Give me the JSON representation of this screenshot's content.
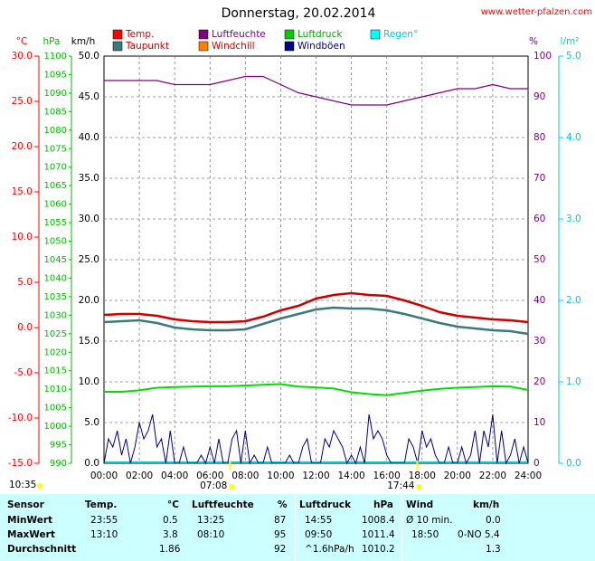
{
  "title": "Donnerstag, 20.02.2014",
  "site": "www.wetter-pfalzen.com",
  "colors": {
    "temp": "#cc0000",
    "dew": "#3a7a7a",
    "humidity": "#800080",
    "pressure": "#00dd00",
    "wind": "#000080",
    "rain": "#00cccc",
    "windchill": "#ff8000",
    "axis_celsius": "#ff0000",
    "axis_hpa": "#00bb00",
    "axis_wind": "#000000",
    "axis_pct": "#800080",
    "axis_rain": "#00cccc"
  },
  "legend": [
    {
      "label": "Temp.",
      "color": "#ff0000"
    },
    {
      "label": "Luftfeuchte",
      "color": "#800080"
    },
    {
      "label": "Luftdruck",
      "color": "#00cc00"
    },
    {
      "label": "Regen°",
      "color": "#00ffff"
    },
    {
      "label": "Taupunkt",
      "color": "#3a7a7a"
    },
    {
      "label": "Windchill",
      "color": "#ff8000"
    },
    {
      "label": "Windböen",
      "color": "#000080"
    }
  ],
  "axis_units": {
    "celsius": "°C",
    "hpa": "hPa",
    "wind": "km/h",
    "pct": "%",
    "rain": "l/m²"
  },
  "axis_ticks": {
    "celsius": [
      "30.0",
      "25.0",
      "20.0",
      "15.0",
      "10.0",
      "5.0",
      "0.0",
      "-5.0",
      "-10.0",
      "-15.0"
    ],
    "hpa": [
      "1100",
      "1095",
      "1090",
      "1085",
      "1080",
      "1075",
      "1070",
      "1065",
      "1060",
      "1055",
      "1050",
      "1045",
      "1040",
      "1035",
      "1030",
      "1025",
      "1020",
      "1015",
      "1010",
      "1005",
      "1000",
      "995",
      "990"
    ],
    "wind": [
      "50.0",
      "45.0",
      "40.0",
      "35.0",
      "30.0",
      "25.0",
      "20.0",
      "15.0",
      "10.0",
      "5.0",
      "0.0"
    ],
    "pct": [
      "100",
      "90",
      "80",
      "70",
      "60",
      "50",
      "40",
      "30",
      "20",
      "10",
      "0"
    ],
    "rain": [
      "5.0",
      "4.0",
      "3.0",
      "2.0",
      "1.0",
      "0.0"
    ],
    "time": [
      "00:00",
      "02:00",
      "04:00",
      "06:00",
      "08:00",
      "10:00",
      "12:00",
      "14:00",
      "16:00",
      "18:00",
      "20:00",
      "22:00",
      "24:00"
    ]
  },
  "sun_markers": [
    {
      "label": "10:35",
      "time_h": 10.58
    },
    {
      "label": "07:08",
      "time_h": 7.13
    },
    {
      "label": "17:44",
      "time_h": 17.73
    }
  ],
  "chart_data": {
    "type": "line",
    "title": "Donnerstag, 20.02.2014",
    "x_unit": "hour",
    "x_range": [
      0,
      24
    ],
    "grid": true,
    "series": [
      {
        "name": "Temp.",
        "unit": "°C",
        "x": [
          0,
          1,
          2,
          3,
          4,
          5,
          6,
          7,
          8,
          9,
          10,
          11,
          12,
          13,
          14,
          15,
          16,
          17,
          18,
          19,
          20,
          21,
          22,
          23,
          24
        ],
        "values": [
          1.4,
          1.5,
          1.5,
          1.3,
          0.9,
          0.7,
          0.6,
          0.6,
          0.7,
          1.2,
          1.9,
          2.4,
          3.2,
          3.6,
          3.8,
          3.6,
          3.5,
          3.0,
          2.4,
          1.7,
          1.3,
          1.1,
          0.9,
          0.8,
          0.6
        ]
      },
      {
        "name": "Taupunkt",
        "unit": "°C",
        "x": [
          0,
          1,
          2,
          3,
          4,
          5,
          6,
          7,
          8,
          9,
          10,
          11,
          12,
          13,
          14,
          15,
          16,
          17,
          18,
          19,
          20,
          21,
          22,
          23,
          24
        ],
        "values": [
          0.6,
          0.7,
          0.8,
          0.5,
          0.0,
          -0.2,
          -0.3,
          -0.3,
          -0.2,
          0.4,
          1.0,
          1.5,
          2.0,
          2.2,
          2.1,
          2.1,
          1.9,
          1.5,
          1.0,
          0.5,
          0.1,
          -0.1,
          -0.3,
          -0.4,
          -0.7
        ]
      },
      {
        "name": "Luftfeuchte",
        "unit": "%",
        "x": [
          0,
          1,
          2,
          3,
          4,
          5,
          6,
          7,
          8,
          9,
          10,
          11,
          12,
          13,
          14,
          15,
          16,
          17,
          18,
          19,
          20,
          21,
          22,
          23,
          24
        ],
        "values": [
          94,
          94,
          94,
          94,
          93,
          93,
          93,
          94,
          95,
          95,
          93,
          91,
          90,
          89,
          88,
          88,
          88,
          89,
          90,
          91,
          92,
          92,
          93,
          92,
          92
        ]
      },
      {
        "name": "Luftdruck",
        "unit": "hPa",
        "x": [
          0,
          1,
          2,
          3,
          4,
          5,
          6,
          7,
          8,
          9,
          10,
          11,
          12,
          13,
          14,
          15,
          16,
          17,
          18,
          19,
          20,
          21,
          22,
          23,
          24
        ],
        "values": [
          1009.3,
          1009.3,
          1009.7,
          1010.4,
          1010.6,
          1010.7,
          1010.8,
          1010.8,
          1011.0,
          1011.2,
          1011.4,
          1010.7,
          1010.5,
          1010.2,
          1009.2,
          1008.7,
          1008.4,
          1009.0,
          1009.6,
          1010.1,
          1010.4,
          1010.6,
          1010.8,
          1010.7,
          1009.8
        ]
      },
      {
        "name": "Windböen",
        "unit": "km/h",
        "x_step": 0.25,
        "values": [
          0,
          3,
          2,
          4,
          1,
          3,
          0,
          2,
          5,
          3,
          4,
          6,
          2,
          3,
          0,
          4,
          0,
          0,
          2,
          0,
          0,
          0,
          1,
          0,
          2,
          0,
          3,
          0,
          0,
          3,
          4,
          0,
          4,
          0,
          1,
          0,
          0,
          2,
          0,
          0,
          0,
          0,
          1,
          0,
          0,
          2,
          3,
          0,
          0,
          0,
          3,
          2,
          4,
          3,
          2,
          0,
          1,
          0,
          2,
          0,
          6,
          3,
          4,
          3,
          1,
          0,
          0,
          0,
          0,
          3,
          2,
          0,
          4,
          2,
          3,
          1,
          0,
          0,
          2,
          0,
          0,
          2,
          0,
          1,
          4,
          0,
          4,
          2,
          6,
          0,
          4,
          0,
          1,
          3,
          0,
          2,
          0
        ]
      },
      {
        "name": "Regen°",
        "unit": "l/m²",
        "x": [
          0,
          24
        ],
        "values": [
          0,
          0
        ]
      }
    ],
    "y_axes": [
      {
        "unit": "°C",
        "range": [
          -15,
          30
        ]
      },
      {
        "unit": "hPa",
        "range": [
          990,
          1100
        ]
      },
      {
        "unit": "km/h",
        "range": [
          0,
          50
        ]
      },
      {
        "unit": "%",
        "range": [
          0,
          100
        ]
      },
      {
        "unit": "l/m²",
        "range": [
          0,
          5
        ]
      }
    ]
  },
  "stats": {
    "headers": {
      "sensor": "Sensor",
      "temp": "Temp.",
      "temp_unit": "°C",
      "hum": "Luftfeuchte",
      "hum_unit": "%",
      "press": "Luftdruck",
      "press_unit": "hPa",
      "wind": "Wind",
      "wind_unit": "km/h"
    },
    "rows": [
      {
        "label": "MinWert",
        "temp_time": "23:55",
        "temp_val": "0.5",
        "hum_time": "13:25",
        "hum_val": "87",
        "press_time": "14:55",
        "press_val": "1008.4",
        "wind_time": "Ø 10 min.",
        "wind_val": "0.0"
      },
      {
        "label": "MaxWert",
        "temp_time": "13:10",
        "temp_val": "3.8",
        "hum_time": "08:10",
        "hum_val": "95",
        "press_time": "09:50",
        "press_val": "1011.4",
        "wind_time": "18:50",
        "wind_val": "0-NO 5.4"
      },
      {
        "label": "Durchschnitt",
        "temp_time": "",
        "temp_val": "1.86",
        "hum_time": "",
        "hum_val": "92",
        "press_time": "^1.6hPa/h",
        "press_val": "1010.2",
        "wind_time": "",
        "wind_val": "1.3"
      }
    ]
  }
}
